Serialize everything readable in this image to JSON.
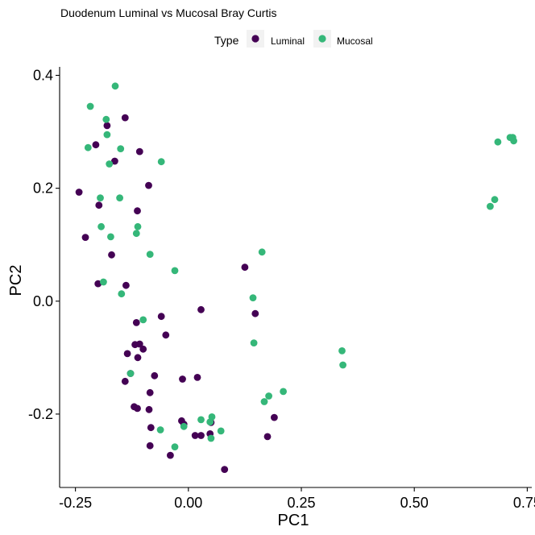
{
  "chart_data": {
    "type": "scatter",
    "title": "Duodenum Luminal vs Mucosal Bray Curtis",
    "xlabel": "PC1",
    "ylabel": "PC2",
    "xlim": [
      -0.285,
      0.76
    ],
    "ylim": [
      -0.33,
      0.415
    ],
    "x_ticks": [
      -0.25,
      0.0,
      0.25,
      0.5,
      0.75
    ],
    "x_tick_labels": [
      "-0.25",
      "0.00",
      "0.25",
      "0.50",
      "0.75"
    ],
    "y_ticks": [
      -0.2,
      0.0,
      0.2,
      0.4
    ],
    "y_tick_labels": [
      "-0.2",
      "0.0",
      "0.2",
      "0.4"
    ],
    "grid": false,
    "legend": {
      "title": "Type",
      "placement": "top",
      "entries": [
        {
          "label": "Luminal",
          "color": "#440154"
        },
        {
          "label": "Mucosal",
          "color": "#35B779"
        }
      ]
    },
    "series": [
      {
        "name": "Luminal",
        "color": "#440154",
        "points": [
          [
            -0.242,
            0.193
          ],
          [
            -0.228,
            0.113
          ],
          [
            -0.205,
            0.277
          ],
          [
            -0.2,
            0.031
          ],
          [
            -0.198,
            0.17
          ],
          [
            -0.18,
            0.311
          ],
          [
            -0.17,
            0.082
          ],
          [
            -0.163,
            0.248
          ],
          [
            -0.14,
            0.325
          ],
          [
            -0.138,
            0.028
          ],
          [
            -0.113,
            0.16
          ],
          [
            -0.108,
            0.265
          ],
          [
            -0.088,
            0.205
          ],
          [
            -0.135,
            -0.093
          ],
          [
            -0.118,
            -0.077
          ],
          [
            -0.115,
            -0.038
          ],
          [
            -0.108,
            -0.076
          ],
          [
            -0.1,
            -0.085
          ],
          [
            -0.112,
            -0.1
          ],
          [
            -0.14,
            -0.142
          ],
          [
            -0.128,
            -0.128
          ],
          [
            -0.12,
            -0.187
          ],
          [
            -0.113,
            -0.19
          ],
          [
            -0.085,
            -0.162
          ],
          [
            -0.087,
            -0.192
          ],
          [
            -0.083,
            -0.224
          ],
          [
            -0.085,
            -0.256
          ],
          [
            -0.075,
            -0.132
          ],
          [
            -0.06,
            -0.027
          ],
          [
            -0.05,
            -0.06
          ],
          [
            -0.04,
            -0.273
          ],
          [
            -0.015,
            -0.212
          ],
          [
            -0.01,
            -0.218
          ],
          [
            -0.013,
            -0.138
          ],
          [
            0.02,
            -0.135
          ],
          [
            0.028,
            -0.015
          ],
          [
            0.015,
            -0.238
          ],
          [
            0.028,
            -0.238
          ],
          [
            0.048,
            -0.235
          ],
          [
            0.05,
            -0.215
          ],
          [
            0.08,
            -0.298
          ],
          [
            0.125,
            0.06
          ],
          [
            0.148,
            -0.022
          ],
          [
            0.175,
            -0.24
          ],
          [
            0.19,
            -0.206
          ]
        ]
      },
      {
        "name": "Mucosal",
        "color": "#35B779",
        "points": [
          [
            -0.217,
            0.345
          ],
          [
            -0.222,
            0.272
          ],
          [
            -0.162,
            0.381
          ],
          [
            -0.182,
            0.322
          ],
          [
            -0.18,
            0.295
          ],
          [
            -0.15,
            0.27
          ],
          [
            -0.175,
            0.243
          ],
          [
            -0.06,
            0.247
          ],
          [
            -0.195,
            0.183
          ],
          [
            -0.152,
            0.183
          ],
          [
            -0.193,
            0.132
          ],
          [
            -0.112,
            0.132
          ],
          [
            -0.172,
            0.114
          ],
          [
            -0.115,
            0.12
          ],
          [
            -0.085,
            0.083
          ],
          [
            -0.03,
            0.054
          ],
          [
            -0.188,
            0.034
          ],
          [
            -0.148,
            0.013
          ],
          [
            -0.1,
            -0.033
          ],
          [
            -0.128,
            -0.128
          ],
          [
            -0.062,
            -0.228
          ],
          [
            -0.03,
            -0.258
          ],
          [
            -0.01,
            -0.222
          ],
          [
            0.028,
            -0.21
          ],
          [
            0.048,
            -0.214
          ],
          [
            0.052,
            -0.205
          ],
          [
            0.072,
            -0.23
          ],
          [
            0.05,
            -0.243
          ],
          [
            0.143,
            0.006
          ],
          [
            0.163,
            0.087
          ],
          [
            0.145,
            -0.074
          ],
          [
            0.168,
            -0.178
          ],
          [
            0.178,
            -0.168
          ],
          [
            0.21,
            -0.16
          ],
          [
            0.34,
            -0.088
          ],
          [
            0.342,
            -0.113
          ],
          [
            0.668,
            0.168
          ],
          [
            0.678,
            0.18
          ],
          [
            0.685,
            0.282
          ],
          [
            0.712,
            0.29
          ],
          [
            0.718,
            0.29
          ],
          [
            0.72,
            0.284
          ]
        ]
      }
    ]
  }
}
